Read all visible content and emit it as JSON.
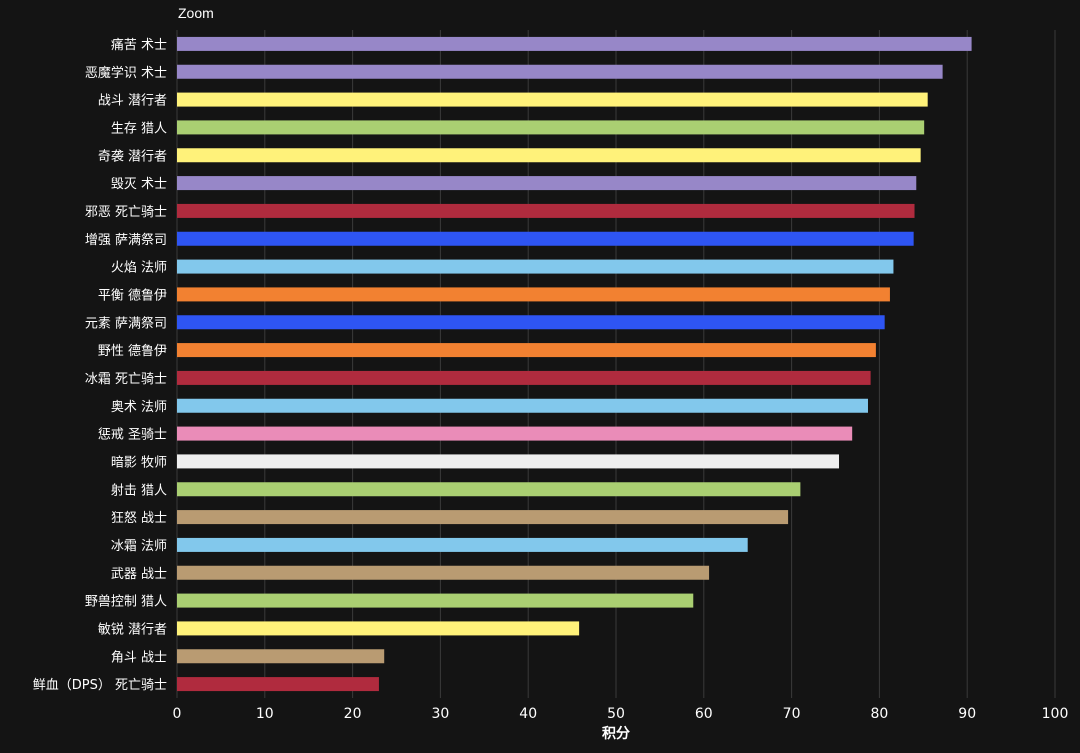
{
  "controls": {
    "zoom_label": "Zoom"
  },
  "chart_data": {
    "type": "bar",
    "orientation": "horizontal",
    "title": "",
    "xlabel": "积分",
    "ylabel": "",
    "xlim": [
      0,
      100
    ],
    "xticks": [
      0,
      10,
      20,
      30,
      40,
      50,
      60,
      70,
      80,
      90,
      100
    ],
    "grid": "vertical",
    "categories": [
      "痛苦 术士",
      "恶魔学识 术士",
      "战斗 潜行者",
      "生存 猎人",
      "奇袭 潜行者",
      "毁灭 术士",
      "邪恶 死亡骑士",
      "增强 萨满祭司",
      "火焰 法师",
      "平衡 德鲁伊",
      "元素 萨满祭司",
      "野性 德鲁伊",
      "冰霜 死亡骑士",
      "奥术 法师",
      "惩戒 圣骑士",
      "暗影 牧师",
      "射击 猎人",
      "狂怒 战士",
      "冰霜 法师",
      "武器 战士",
      "野兽控制 猎人",
      "敏锐 潜行者",
      "角斗 战士",
      "鲜血（DPS） 死亡骑士"
    ],
    "values": [
      90.5,
      87.2,
      85.5,
      85.1,
      84.7,
      84.2,
      84.0,
      83.9,
      81.6,
      81.2,
      80.6,
      79.6,
      79.0,
      78.7,
      76.9,
      75.4,
      71.0,
      69.6,
      65.0,
      60.6,
      58.8,
      45.8,
      23.6,
      23.0
    ],
    "colors": [
      "#9787c8",
      "#9787c8",
      "#fff27a",
      "#aacf72",
      "#fff27a",
      "#9787c8",
      "#b02b3e",
      "#2e55f3",
      "#82c8ec",
      "#f28131",
      "#2e55f3",
      "#f28131",
      "#b02b3e",
      "#82c8ec",
      "#ea8cb8",
      "#efefef",
      "#aacf72",
      "#b99b72",
      "#82c8ec",
      "#b99b72",
      "#aacf72",
      "#fff27a",
      "#b99b72",
      "#b02b3e"
    ]
  }
}
